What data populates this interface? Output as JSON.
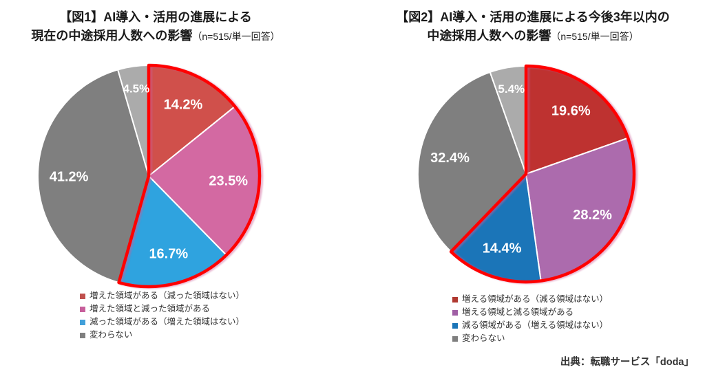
{
  "chart_data": [
    {
      "type": "pie",
      "title": "【図1】AI導入・活用の進展による現在の中途採用人数への影響（n=515/単一回答）",
      "title_line1": "【図1】AI導入・活用の進展による",
      "title_line2": "現在の中途採用人数への影響",
      "title_note": "（n=515/単一回答）",
      "n": 515,
      "direction": "clockwise",
      "start_angle_deg": 0,
      "categories": [
        "増えた領域がある（減った領域はない）",
        "増えた領域と減った領域がある",
        "減った領域がある（増えた領域はない）",
        "変わらない",
        ""
      ],
      "values": [
        14.2,
        23.5,
        16.7,
        41.2,
        4.5
      ],
      "data_labels": [
        "14.2%",
        "23.5%",
        "16.7%",
        "41.2%",
        "4.5%"
      ],
      "colors": [
        "#D0504B",
        "#D369A2",
        "#2FA3DF",
        "#7F7F7F",
        "#ABABAB"
      ],
      "highlight_outline": {
        "color": "#FF0000",
        "covers_slices": [
          0,
          1,
          2
        ]
      },
      "legend": {
        "position": "bottom",
        "entries": [
          {
            "label": "増えた領域がある（減った領域はない）",
            "color": "#C0504D"
          },
          {
            "label": "増えた領域と減った領域がある",
            "color": "#C75F9B"
          },
          {
            "label": "減った領域がある（増えた領域はない）",
            "color": "#41A0DA"
          },
          {
            "label": "変わらない",
            "color": "#7F7F7F"
          }
        ]
      }
    },
    {
      "type": "pie",
      "title": "【図2】AI導入・活用の進展による今後3年以内の中途採用人数への影響（n=515/単一回答）",
      "title_line1": "【図2】AI導入・活用の進展による今後3年以内の",
      "title_line2": "中途採用人数への影響",
      "title_note": "（n=515/単一回答）",
      "n": 515,
      "direction": "clockwise",
      "start_angle_deg": 0,
      "categories": [
        "増える領域がある（減る領域はない）",
        "増える領域と減る領域がある",
        "減る領域がある（増える領域はない）",
        "変わらない",
        ""
      ],
      "values": [
        19.6,
        28.2,
        14.4,
        32.4,
        5.4
      ],
      "data_labels": [
        "19.6%",
        "28.2%",
        "14.4%",
        "32.4%",
        "5.4%"
      ],
      "colors": [
        "#BE3230",
        "#AC6BAD",
        "#1B75B8",
        "#7F7F7F",
        "#ABABAB"
      ],
      "highlight_outline": {
        "color": "#FF0000",
        "covers_slices": [
          0,
          1,
          2
        ]
      },
      "legend": {
        "position": "bottom",
        "entries": [
          {
            "label": "増える領域がある（減る領域はない）",
            "color": "#B03931"
          },
          {
            "label": "増える領域と減る領域がある",
            "color": "#A05FA5"
          },
          {
            "label": "減る領域がある（増える領域はない）",
            "color": "#1B75B8"
          },
          {
            "label": "変わらない",
            "color": "#7F7F7F"
          }
        ]
      }
    }
  ],
  "source": "出典：転職サービス「doda」"
}
